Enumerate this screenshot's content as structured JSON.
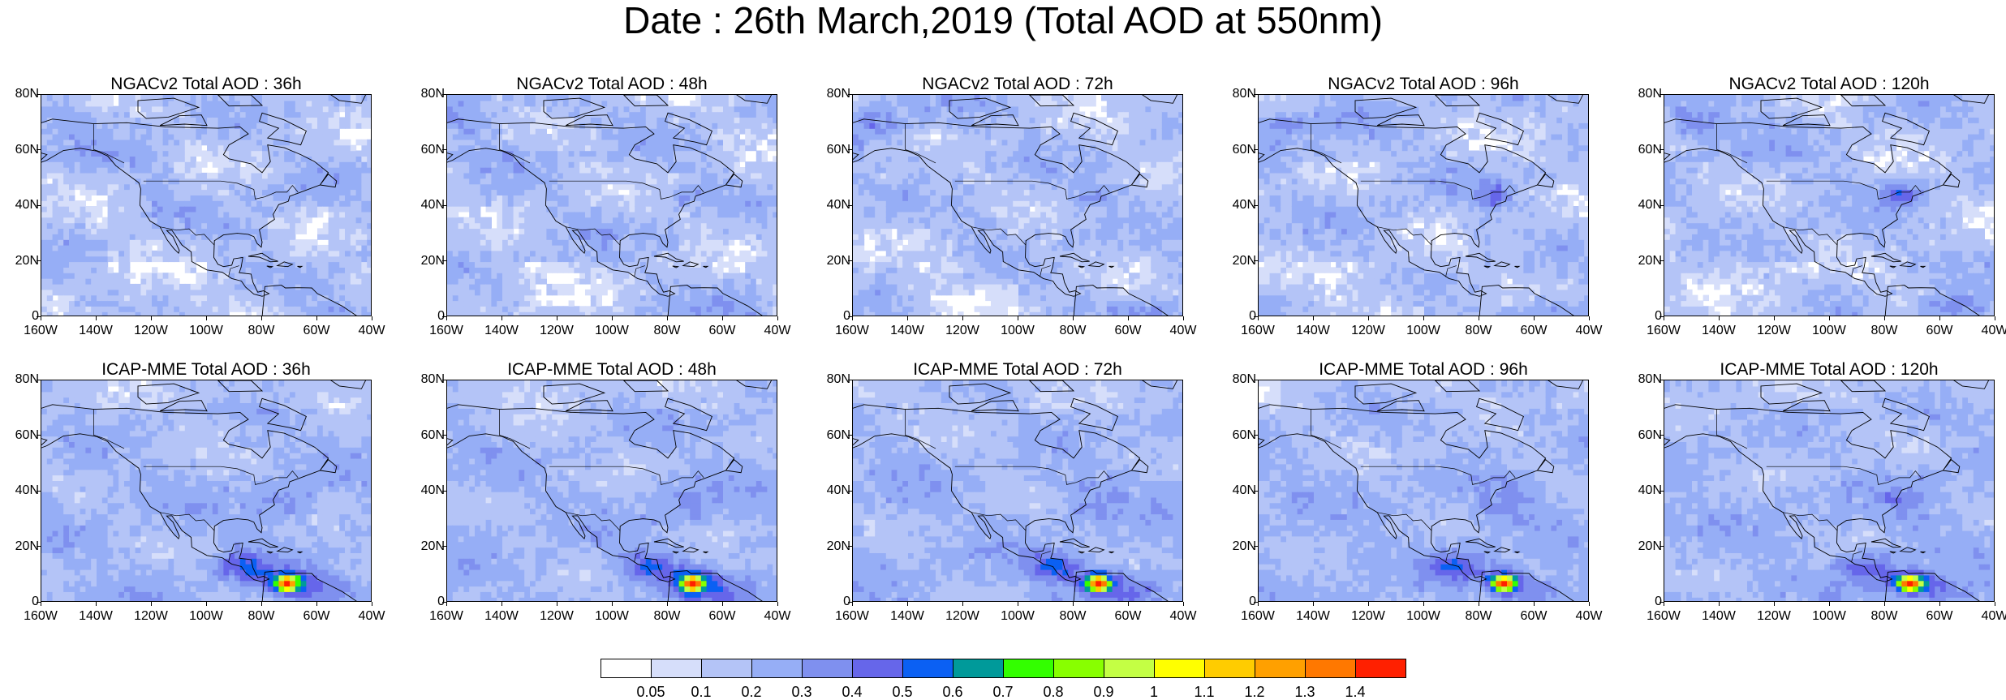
{
  "title": "Date : 26th March,2019 (Total AOD at 550nm)",
  "chart_data": {
    "type": "heatmap",
    "panels": [
      {
        "title": "NGACv2 Total AOD : 36h",
        "model": "NGACv2",
        "lead": "36h"
      },
      {
        "title": "NGACv2 Total AOD : 48h",
        "model": "NGACv2",
        "lead": "48h"
      },
      {
        "title": "NGACv2 Total AOD : 72h",
        "model": "NGACv2",
        "lead": "72h"
      },
      {
        "title": "NGACv2 Total AOD : 96h",
        "model": "NGACv2",
        "lead": "96h"
      },
      {
        "title": "NGACv2 Total AOD : 120h",
        "model": "NGACv2",
        "lead": "120h"
      },
      {
        "title": "ICAP-MME Total AOD : 36h",
        "model": "ICAP-MME",
        "lead": "36h"
      },
      {
        "title": "ICAP-MME Total AOD : 48h",
        "model": "ICAP-MME",
        "lead": "48h"
      },
      {
        "title": "ICAP-MME Total AOD : 72h",
        "model": "ICAP-MME",
        "lead": "72h"
      },
      {
        "title": "ICAP-MME Total AOD : 96h",
        "model": "ICAP-MME",
        "lead": "96h"
      },
      {
        "title": "ICAP-MME Total AOD : 120h",
        "model": "ICAP-MME",
        "lead": "120h"
      }
    ],
    "lon_ticks": [
      "160W",
      "140W",
      "120W",
      "100W",
      "80W",
      "60W",
      "40W"
    ],
    "lat_ticks": [
      "80N",
      "60N",
      "40N",
      "20N",
      "0"
    ],
    "xlim": [
      -160,
      -40
    ],
    "ylim": [
      0,
      80
    ],
    "colorbar": {
      "levels": [
        "0.05",
        "0.1",
        "0.2",
        "0.3",
        "0.4",
        "0.5",
        "0.6",
        "0.7",
        "0.8",
        "0.9",
        "1",
        "1.1",
        "1.2",
        "1.3",
        "1.4"
      ],
      "colors": [
        "#ffffff",
        "#d6defa",
        "#b4c4f7",
        "#96aef6",
        "#7f90ef",
        "#6666ea",
        "#0b60f3",
        "#009a9a",
        "#33ff00",
        "#88ff00",
        "#c4ff44",
        "#ffff00",
        "#ffcc00",
        "#ffa000",
        "#ff7800",
        "#ff2000"
      ]
    }
  }
}
